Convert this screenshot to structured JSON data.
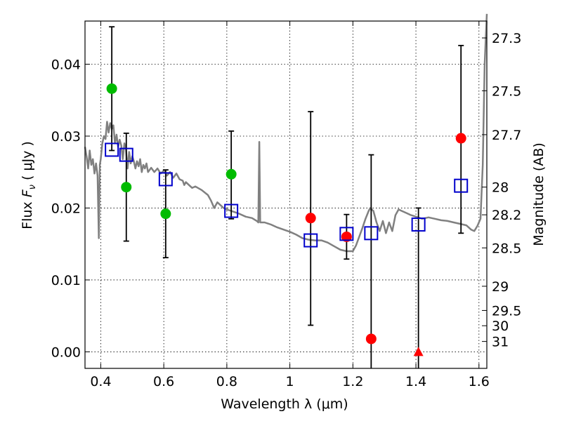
{
  "chart_data": {
    "type": "scatter",
    "title": "",
    "xlabel": "Wavelength  λ (μm)",
    "ylabel_prefix": "Flux ",
    "ylabel_symbol": "F",
    "ylabel_subscript": "ν",
    "ylabel_units": " ( μJy )",
    "y2label": "Magnitude (AB)",
    "xlim": [
      0.35,
      1.625
    ],
    "ylim": [
      -0.0023,
      0.046
    ],
    "x_ticks": [
      0.4,
      0.6,
      0.8,
      1.0,
      1.2,
      1.4,
      1.6
    ],
    "x_tick_labels": [
      "0.4",
      "0.6",
      "0.8",
      "1",
      "1.2",
      "1.4",
      "1.6"
    ],
    "y_ticks": [
      0.0,
      0.01,
      0.02,
      0.03,
      0.04
    ],
    "y_tick_labels": [
      "0.00",
      "0.01",
      "0.02",
      "0.03",
      "0.04"
    ],
    "y2_ticks": [
      27.3,
      27.5,
      27.7,
      28.0,
      28.2,
      28.5,
      29.0,
      29.5,
      30.0,
      31.0
    ],
    "y2_tick_labels": [
      "27.3",
      "27.5",
      "27.7",
      "28",
      "28.2",
      "28.5",
      "29",
      "29.5",
      "30",
      "31"
    ],
    "grid": true,
    "colors": {
      "model_spectrum": "#808080",
      "green_points": "#00bb00",
      "red_points": "#ff0000",
      "model_photometry": "#0000cc",
      "error_bars": "#000000"
    },
    "model_spectrum": [
      [
        0.35,
        0.0285
      ],
      [
        0.355,
        0.0272
      ],
      [
        0.36,
        0.0255
      ],
      [
        0.365,
        0.028
      ],
      [
        0.37,
        0.026
      ],
      [
        0.375,
        0.0268
      ],
      [
        0.38,
        0.0248
      ],
      [
        0.385,
        0.0262
      ],
      [
        0.39,
        0.0245
      ],
      [
        0.394,
        0.0158
      ],
      [
        0.397,
        0.026
      ],
      [
        0.4,
        0.0268
      ],
      [
        0.405,
        0.029
      ],
      [
        0.41,
        0.03
      ],
      [
        0.415,
        0.0296
      ],
      [
        0.42,
        0.032
      ],
      [
        0.425,
        0.0305
      ],
      [
        0.43,
        0.0318
      ],
      [
        0.435,
        0.031
      ],
      [
        0.44,
        0.0315
      ],
      [
        0.445,
        0.029
      ],
      [
        0.45,
        0.0302
      ],
      [
        0.455,
        0.0285
      ],
      [
        0.46,
        0.0295
      ],
      [
        0.465,
        0.0287
      ],
      [
        0.47,
        0.0268
      ],
      [
        0.475,
        0.029
      ],
      [
        0.48,
        0.0282
      ],
      [
        0.485,
        0.0255
      ],
      [
        0.49,
        0.0278
      ],
      [
        0.495,
        0.0262
      ],
      [
        0.5,
        0.0272
      ],
      [
        0.505,
        0.0265
      ],
      [
        0.51,
        0.0255
      ],
      [
        0.515,
        0.0265
      ],
      [
        0.52,
        0.0258
      ],
      [
        0.525,
        0.0268
      ],
      [
        0.53,
        0.025
      ],
      [
        0.535,
        0.026
      ],
      [
        0.54,
        0.0255
      ],
      [
        0.545,
        0.0262
      ],
      [
        0.55,
        0.025
      ],
      [
        0.56,
        0.0256
      ],
      [
        0.57,
        0.025
      ],
      [
        0.58,
        0.0255
      ],
      [
        0.59,
        0.0248
      ],
      [
        0.6,
        0.0252
      ],
      [
        0.61,
        0.0245
      ],
      [
        0.62,
        0.025
      ],
      [
        0.63,
        0.0242
      ],
      [
        0.64,
        0.0248
      ],
      [
        0.65,
        0.024
      ],
      [
        0.66,
        0.0238
      ],
      [
        0.665,
        0.0232
      ],
      [
        0.67,
        0.0236
      ],
      [
        0.68,
        0.0232
      ],
      [
        0.69,
        0.0228
      ],
      [
        0.7,
        0.023
      ],
      [
        0.72,
        0.0225
      ],
      [
        0.74,
        0.0218
      ],
      [
        0.75,
        0.021
      ],
      [
        0.76,
        0.02
      ],
      [
        0.77,
        0.0208
      ],
      [
        0.78,
        0.0204
      ],
      [
        0.79,
        0.02
      ],
      [
        0.8,
        0.0198
      ],
      [
        0.82,
        0.0195
      ],
      [
        0.84,
        0.0192
      ],
      [
        0.86,
        0.0188
      ],
      [
        0.88,
        0.0186
      ],
      [
        0.895,
        0.0182
      ],
      [
        0.9,
        0.018
      ],
      [
        0.903,
        0.0292
      ],
      [
        0.906,
        0.018
      ],
      [
        0.92,
        0.018
      ],
      [
        0.94,
        0.0177
      ],
      [
        0.96,
        0.0173
      ],
      [
        0.98,
        0.017
      ],
      [
        1.0,
        0.0167
      ],
      [
        1.02,
        0.0163
      ],
      [
        1.04,
        0.0158
      ],
      [
        1.06,
        0.0156
      ],
      [
        1.08,
        0.0155
      ],
      [
        1.1,
        0.0155
      ],
      [
        1.12,
        0.0152
      ],
      [
        1.14,
        0.0147
      ],
      [
        1.16,
        0.0142
      ],
      [
        1.18,
        0.014
      ],
      [
        1.2,
        0.014
      ],
      [
        1.21,
        0.0148
      ],
      [
        1.22,
        0.016
      ],
      [
        1.23,
        0.0172
      ],
      [
        1.24,
        0.0185
      ],
      [
        1.25,
        0.0196
      ],
      [
        1.255,
        0.02
      ],
      [
        1.265,
        0.0196
      ],
      [
        1.275,
        0.018
      ],
      [
        1.285,
        0.0168
      ],
      [
        1.295,
        0.0182
      ],
      [
        1.305,
        0.0165
      ],
      [
        1.315,
        0.018
      ],
      [
        1.325,
        0.0168
      ],
      [
        1.335,
        0.019
      ],
      [
        1.345,
        0.0198
      ],
      [
        1.355,
        0.0196
      ],
      [
        1.37,
        0.0193
      ],
      [
        1.385,
        0.019
      ],
      [
        1.4,
        0.0188
      ],
      [
        1.42,
        0.0185
      ],
      [
        1.44,
        0.0187
      ],
      [
        1.46,
        0.0185
      ],
      [
        1.48,
        0.0183
      ],
      [
        1.5,
        0.0182
      ],
      [
        1.52,
        0.018
      ],
      [
        1.54,
        0.0178
      ],
      [
        1.56,
        0.0176
      ],
      [
        1.575,
        0.017
      ],
      [
        1.585,
        0.0168
      ],
      [
        1.595,
        0.0175
      ],
      [
        1.605,
        0.0185
      ],
      [
        1.612,
        0.026
      ],
      [
        1.618,
        0.04
      ],
      [
        1.625,
        0.047
      ]
    ],
    "green_points": [
      {
        "x": 0.435,
        "y": 0.0366
      },
      {
        "x": 0.481,
        "y": 0.0229
      },
      {
        "x": 0.606,
        "y": 0.0192
      },
      {
        "x": 0.814,
        "y": 0.0247
      }
    ],
    "red_points": [
      {
        "x": 1.066,
        "y": 0.0186
      },
      {
        "x": 1.18,
        "y": 0.016
      },
      {
        "x": 1.258,
        "y": 0.0018
      },
      {
        "x": 1.543,
        "y": 0.0297
      }
    ],
    "red_triangle": {
      "x": 1.408,
      "y": 0.0
    },
    "model_photometry": [
      {
        "x": 0.435,
        "y": 0.0281
      },
      {
        "x": 0.481,
        "y": 0.0274
      },
      {
        "x": 0.606,
        "y": 0.024
      },
      {
        "x": 0.814,
        "y": 0.0196
      },
      {
        "x": 1.066,
        "y": 0.0155
      },
      {
        "x": 1.18,
        "y": 0.0164
      },
      {
        "x": 1.258,
        "y": 0.0165
      },
      {
        "x": 1.408,
        "y": 0.0177
      },
      {
        "x": 1.543,
        "y": 0.0231
      }
    ],
    "error_bars": [
      {
        "x": 0.435,
        "low": 0.028,
        "high": 0.0452
      },
      {
        "x": 0.481,
        "low": 0.0154,
        "high": 0.0304
      },
      {
        "x": 0.606,
        "low": 0.0131,
        "high": 0.0253
      },
      {
        "x": 0.814,
        "low": 0.0185,
        "high": 0.0307
      },
      {
        "x": 1.066,
        "low": 0.0037,
        "high": 0.0334
      },
      {
        "x": 1.18,
        "low": 0.0129,
        "high": 0.0191
      },
      {
        "x": 1.258,
        "low": -0.0023,
        "high": 0.0274
      },
      {
        "x": 1.408,
        "low": -0.0023,
        "high": 0.02
      },
      {
        "x": 1.543,
        "low": 0.0165,
        "high": 0.0426
      }
    ]
  }
}
